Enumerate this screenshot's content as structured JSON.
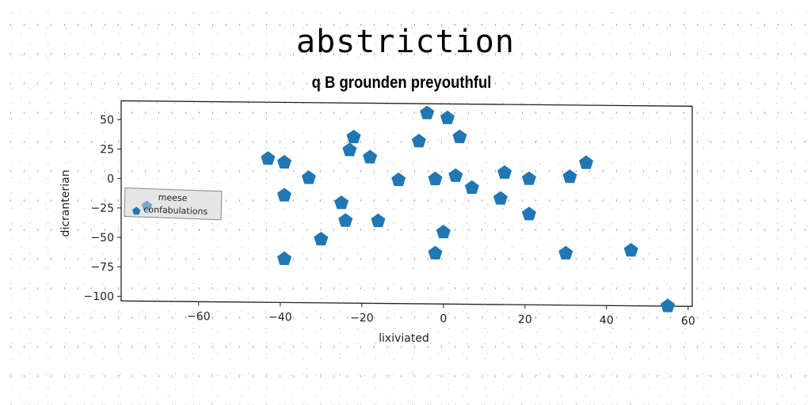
{
  "chart_data": {
    "type": "scatter",
    "title": "abstriction",
    "subtitle": "q B grounden preyouthful",
    "xlabel": "lixiviated",
    "ylabel": "dicranterian",
    "xlim": [
      -79,
      61
    ],
    "ylim": [
      -104,
      66
    ],
    "xticks": [
      -60,
      -40,
      -20,
      0,
      20,
      40,
      60
    ],
    "yticks": [
      50,
      25,
      0,
      -25,
      -50,
      -75,
      -100
    ],
    "xtick_labels": [
      "−60",
      "−40",
      "−20",
      "0",
      "20",
      "40",
      "60"
    ],
    "ytick_labels": [
      "50",
      "25",
      "0",
      "−25",
      "−50",
      "−75",
      "−100"
    ],
    "grid": false,
    "legend": {
      "placement": "center-left",
      "entries": [
        "meese",
        "confabulations"
      ]
    },
    "series": [
      {
        "name": "confabulations",
        "marker": "pentagon",
        "color": "#1f77b4",
        "points": [
          [
            -43,
            18
          ],
          [
            -39,
            15
          ],
          [
            -39,
            -13
          ],
          [
            -33,
            2
          ],
          [
            -30,
            -50
          ],
          [
            -39,
            -67
          ],
          [
            -25,
            -19
          ],
          [
            -24,
            -34
          ],
          [
            -23,
            26
          ],
          [
            -22,
            37
          ],
          [
            -18,
            20
          ],
          [
            -16,
            -34
          ],
          [
            -11,
            1
          ],
          [
            -6,
            34
          ],
          [
            -4,
            58
          ],
          [
            -2,
            2
          ],
          [
            -2,
            -61
          ],
          [
            0,
            -43
          ],
          [
            1,
            54
          ],
          [
            3,
            5
          ],
          [
            4,
            38
          ],
          [
            7,
            -5
          ],
          [
            14,
            -14
          ],
          [
            15,
            8
          ],
          [
            21,
            3
          ],
          [
            21,
            -27
          ],
          [
            30,
            -60
          ],
          [
            31,
            5
          ],
          [
            35,
            17
          ],
          [
            46,
            -57
          ],
          [
            55,
            -104
          ]
        ]
      }
    ]
  }
}
